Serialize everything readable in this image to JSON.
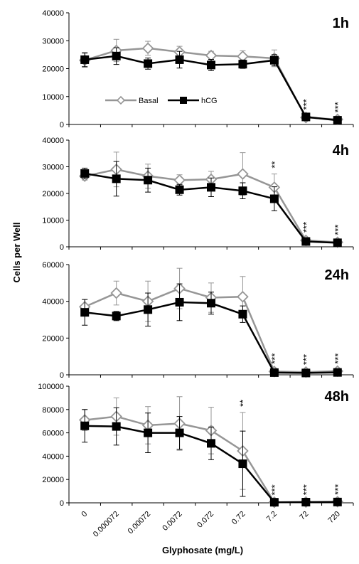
{
  "figure": {
    "ylabel": "Cells per Well",
    "xlabel": "Glyphosate (mg/L)"
  },
  "legend": {
    "placement": "inside-top-left of first panel",
    "entries": [
      {
        "name": "Basal",
        "color": "#969696",
        "marker": "diamond-open"
      },
      {
        "name": "hCG",
        "color": "#000000",
        "marker": "square-filled"
      }
    ]
  },
  "chart_data": [
    {
      "type": "line",
      "title": "1h",
      "categories": [
        "0",
        "0.000072",
        "0.00072",
        "0.0072",
        "0.072",
        "0.72",
        "7.2",
        "72",
        "720"
      ],
      "ylim": [
        0,
        40000
      ],
      "yticks": [
        "0",
        "10000",
        "20000",
        "30000",
        "40000"
      ],
      "series": [
        {
          "name": "Basal",
          "values": [
            23000,
            26500,
            27300,
            26000,
            24700,
            24400,
            23700,
            2500,
            1800
          ],
          "errors": [
            2500,
            4000,
            2500,
            2000,
            1500,
            2000,
            3000,
            500,
            400
          ]
        },
        {
          "name": "hCG",
          "values": [
            23200,
            24500,
            21800,
            23200,
            21300,
            21600,
            23000,
            2700,
            1500
          ],
          "errors": [
            2500,
            3000,
            2000,
            3000,
            2000,
            1500,
            2000,
            500,
            400
          ]
        }
      ],
      "annotations": [
        {
          "index": 7,
          "text": "***"
        },
        {
          "index": 8,
          "text": "***"
        }
      ]
    },
    {
      "type": "line",
      "title": "4h",
      "categories": [
        "0",
        "0.000072",
        "0.00072",
        "0.0072",
        "0.072",
        "0.72",
        "7.2",
        "72",
        "720"
      ],
      "ylim": [
        0,
        40000
      ],
      "yticks": [
        "0",
        "10000",
        "20000",
        "30000",
        "40000"
      ],
      "series": [
        {
          "name": "Basal",
          "values": [
            26500,
            29000,
            26500,
            25000,
            25300,
            27300,
            22300,
            2400,
            1700
          ],
          "errors": [
            1500,
            6500,
            4500,
            2000,
            3000,
            8000,
            5000,
            800,
            500
          ]
        },
        {
          "name": "hCG",
          "values": [
            27500,
            25500,
            25000,
            21400,
            22300,
            21000,
            18000,
            2000,
            1500
          ],
          "errors": [
            2000,
            6500,
            4500,
            2000,
            3500,
            3000,
            4500,
            500,
            400
          ]
        }
      ],
      "annotations": [
        {
          "index": 6,
          "text": "**"
        },
        {
          "index": 7,
          "text": "***"
        },
        {
          "index": 8,
          "text": "***"
        }
      ]
    },
    {
      "type": "line",
      "title": "24h",
      "categories": [
        "0",
        "0.000072",
        "0.00072",
        "0.0072",
        "0.072",
        "0.72",
        "7.2",
        "72",
        "720"
      ],
      "ylim": [
        0,
        60000
      ],
      "yticks": [
        "0",
        "20000",
        "40000",
        "60000"
      ],
      "series": [
        {
          "name": "Basal",
          "values": [
            37000,
            44500,
            40000,
            47000,
            42000,
            42500,
            1800,
            1500,
            2000
          ],
          "errors": [
            4000,
            6500,
            11000,
            11000,
            8000,
            11000,
            1000,
            800,
            800
          ]
        },
        {
          "name": "hCG",
          "values": [
            34000,
            32000,
            35500,
            39500,
            39000,
            33000,
            1200,
            1000,
            1300
          ],
          "errors": [
            7000,
            2500,
            9000,
            10000,
            6000,
            4500,
            800,
            600,
            600
          ]
        }
      ],
      "annotations": [
        {
          "index": 6,
          "text": "***"
        },
        {
          "index": 7,
          "text": "***"
        },
        {
          "index": 8,
          "text": "***"
        }
      ]
    },
    {
      "type": "line",
      "title": "48h",
      "categories": [
        "0",
        "0.000072",
        "0.00072",
        "0.0072",
        "0.072",
        "0.72",
        "7.2",
        "72",
        "720"
      ],
      "ylim": [
        0,
        100000
      ],
      "yticks": [
        "0",
        "20000",
        "40000",
        "60000",
        "80000",
        "100000"
      ],
      "series": [
        {
          "name": "Basal",
          "values": [
            71000,
            74000,
            66500,
            68000,
            62000,
            44500,
            500,
            700,
            1000
          ],
          "errors": [
            9000,
            16000,
            16000,
            23000,
            20000,
            33000,
            1000,
            1000,
            1000
          ]
        },
        {
          "name": "hCG",
          "values": [
            66000,
            65500,
            60000,
            60000,
            51000,
            33500,
            500,
            600,
            700
          ],
          "errors": [
            14000,
            16000,
            17000,
            14000,
            14000,
            28000,
            800,
            800,
            800
          ]
        }
      ],
      "annotations": [
        {
          "index": 5,
          "text": "**"
        },
        {
          "index": 6,
          "text": "***"
        },
        {
          "index": 7,
          "text": "***"
        },
        {
          "index": 8,
          "text": "***"
        }
      ]
    }
  ]
}
